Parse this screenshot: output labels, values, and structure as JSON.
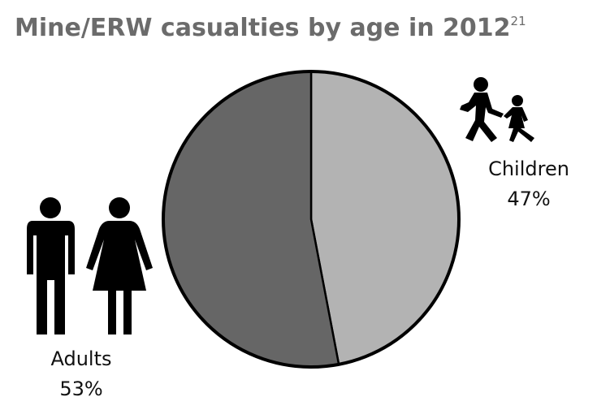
{
  "chart_data": {
    "type": "pie",
    "title": "Mine/ERW casualties by age in 2012",
    "title_footnote": "21",
    "categories": [
      "Children",
      "Adults"
    ],
    "values": [
      47,
      53
    ],
    "value_labels": [
      "47%",
      "53%"
    ],
    "colors": [
      "#b3b3b3",
      "#666666"
    ],
    "start_angle": 0,
    "direction": "clockwise"
  }
}
